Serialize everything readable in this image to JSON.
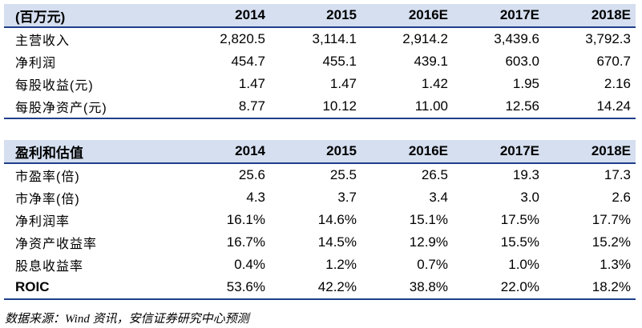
{
  "tables": [
    {
      "header": [
        "(百万元)",
        "2014",
        "2015",
        "2016E",
        "2017E",
        "2018E"
      ],
      "rows": [
        {
          "label": "主营收入",
          "values": [
            "2,820.5",
            "3,114.1",
            "2,914.2",
            "3,439.6",
            "3,792.3"
          ]
        },
        {
          "label": "净利润",
          "values": [
            "454.7",
            "455.1",
            "439.1",
            "603.0",
            "670.7"
          ]
        },
        {
          "label": "每股收益(元)",
          "values": [
            "1.47",
            "1.47",
            "1.42",
            "1.95",
            "2.16"
          ]
        },
        {
          "label": "每股净资产(元)",
          "values": [
            "8.77",
            "10.12",
            "11.00",
            "12.56",
            "14.24"
          ]
        }
      ]
    },
    {
      "header": [
        "盈利和估值",
        "2014",
        "2015",
        "2016E",
        "2017E",
        "2018E"
      ],
      "rows": [
        {
          "label": "市盈率(倍)",
          "values": [
            "25.6",
            "25.5",
            "26.5",
            "19.3",
            "17.3"
          ]
        },
        {
          "label": "市净率(倍)",
          "values": [
            "4.3",
            "3.7",
            "3.4",
            "3.0",
            "2.6"
          ]
        },
        {
          "label": "净利润率",
          "values": [
            "16.1%",
            "14.6%",
            "15.1%",
            "17.5%",
            "17.7%"
          ]
        },
        {
          "label": "净资产收益率",
          "values": [
            "16.7%",
            "14.5%",
            "12.9%",
            "15.5%",
            "15.2%"
          ]
        },
        {
          "label": "股息收益率",
          "values": [
            "0.4%",
            "1.2%",
            "0.7%",
            "1.0%",
            "1.3%"
          ]
        },
        {
          "label": "ROIC",
          "values": [
            "53.6%",
            "42.2%",
            "38.8%",
            "22.0%",
            "18.2%"
          ]
        }
      ]
    }
  ],
  "source": "数据来源：Wind 资讯，安信证券研究中心预测",
  "colors": {
    "header_bg": "#d5dff0",
    "rule": "#1f3f8a"
  }
}
